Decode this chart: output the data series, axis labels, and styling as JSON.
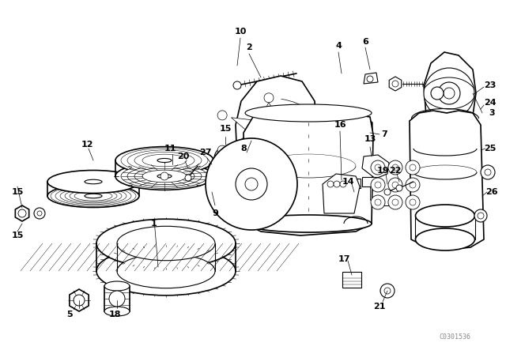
{
  "bg_color": "#ffffff",
  "line_color": "#000000",
  "watermark": "C0301536",
  "fig_w": 6.4,
  "fig_h": 4.48,
  "dpi": 100,
  "xlim": [
    0,
    640
  ],
  "ylim": [
    0,
    448
  ]
}
